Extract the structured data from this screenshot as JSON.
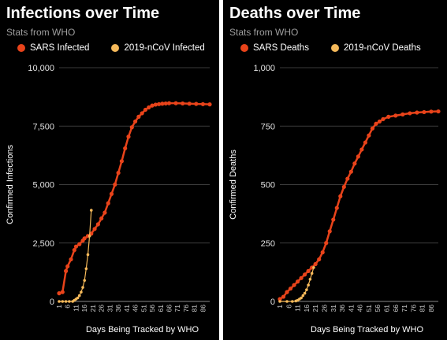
{
  "chart_data": [
    {
      "type": "line",
      "title": "Infections over Time",
      "subtitle": "Stats from WHO",
      "xlabel": "Days Being Tracked by WHO",
      "ylabel": "Confirmed Infections",
      "ylim": [
        0,
        10000
      ],
      "xlim": [
        1,
        90
      ],
      "yticks": [
        "0",
        "2,500",
        "5,000",
        "7,500",
        "10,000"
      ],
      "ytick_values": [
        0,
        2500,
        5000,
        7500,
        10000
      ],
      "xticks": [
        "1",
        "6",
        "11",
        "16",
        "21",
        "26",
        "31",
        "36",
        "41",
        "46",
        "51",
        "56",
        "61",
        "66",
        "71",
        "76",
        "81",
        "86"
      ],
      "grid": true,
      "legend_position": "top",
      "series": [
        {
          "name": "SARS Infected",
          "color": "#e8431a",
          "x": [
            1,
            3,
            5,
            6,
            8,
            10,
            11,
            13,
            15,
            16,
            18,
            20,
            22,
            24,
            26,
            28,
            30,
            32,
            34,
            36,
            38,
            40,
            42,
            44,
            46,
            48,
            50,
            52,
            54,
            56,
            58,
            60,
            62,
            64,
            66,
            70,
            74,
            78,
            82,
            86,
            90
          ],
          "y": [
            350,
            400,
            1300,
            1500,
            1800,
            2200,
            2350,
            2450,
            2600,
            2700,
            2800,
            2900,
            3100,
            3300,
            3550,
            3800,
            4200,
            4600,
            5000,
            5500,
            6000,
            6550,
            7050,
            7450,
            7700,
            7900,
            8050,
            8200,
            8300,
            8380,
            8420,
            8440,
            8460,
            8470,
            8480,
            8480,
            8470,
            8460,
            8450,
            8440,
            8430
          ]
        },
        {
          "name": "2019-nCoV Infected",
          "color": "#f5b95a",
          "x": [
            1,
            3,
            5,
            7,
            9,
            10,
            11,
            12,
            13,
            14,
            15,
            16,
            17,
            18,
            19,
            20
          ],
          "y": [
            0,
            0,
            0,
            0,
            0,
            50,
            100,
            150,
            250,
            400,
            600,
            900,
            1400,
            2000,
            2800,
            3900
          ]
        }
      ]
    },
    {
      "type": "line",
      "title": "Deaths over Time",
      "subtitle": "Stats from WHO",
      "xlabel": "Days Being Tracked by WHO",
      "ylabel": "Confirmed Deaths",
      "ylim": [
        0,
        1000
      ],
      "xlim": [
        1,
        90
      ],
      "yticks": [
        "0",
        "250",
        "500",
        "750",
        "1,000"
      ],
      "ytick_values": [
        0,
        250,
        500,
        750,
        1000
      ],
      "xticks": [
        "1",
        "6",
        "11",
        "16",
        "21",
        "26",
        "31",
        "36",
        "41",
        "46",
        "51",
        "56",
        "61",
        "66",
        "71",
        "76",
        "81",
        "86"
      ],
      "grid": true,
      "legend_position": "top",
      "series": [
        {
          "name": "SARS Deaths",
          "color": "#e8431a",
          "x": [
            1,
            3,
            5,
            7,
            9,
            11,
            13,
            15,
            17,
            19,
            21,
            23,
            25,
            27,
            29,
            31,
            33,
            35,
            37,
            39,
            41,
            43,
            45,
            47,
            49,
            51,
            53,
            55,
            57,
            59,
            62,
            66,
            70,
            74,
            78,
            82,
            86,
            90
          ],
          "y": [
            10,
            20,
            40,
            55,
            70,
            85,
            100,
            115,
            130,
            145,
            160,
            180,
            210,
            250,
            300,
            350,
            400,
            450,
            490,
            525,
            555,
            590,
            620,
            650,
            680,
            710,
            740,
            760,
            770,
            780,
            790,
            795,
            800,
            805,
            808,
            810,
            812,
            813
          ]
        },
        {
          "name": "2019-nCoV Deaths",
          "color": "#f5b95a",
          "x": [
            1,
            5,
            8,
            10,
            11,
            12,
            13,
            14,
            15,
            16,
            17,
            18,
            19,
            20
          ],
          "y": [
            0,
            0,
            0,
            2,
            5,
            10,
            15,
            25,
            35,
            50,
            70,
            95,
            120,
            145
          ]
        }
      ]
    }
  ]
}
